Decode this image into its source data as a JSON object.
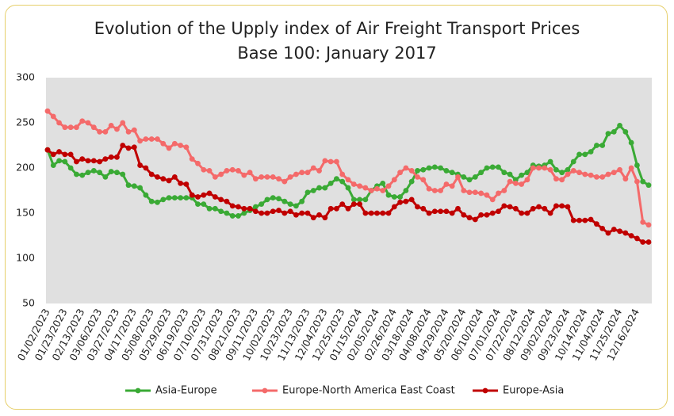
{
  "chart_data": {
    "type": "line",
    "title": "Evolution of the Upply index of Air Freight Transport Prices",
    "subtitle": "Base 100: January 2017",
    "categories": [
      "01/02/2023",
      null,
      null,
      "01/23/2023",
      null,
      null,
      "02/13/2023",
      null,
      null,
      "03/06/2023",
      null,
      null,
      "03/27/2023",
      null,
      null,
      "04/17/2023",
      null,
      null,
      "05/08/2023",
      null,
      null,
      "05/29/2023",
      null,
      null,
      "06/19/2023",
      null,
      null,
      "07/10/2023",
      null,
      null,
      "07/31/2023",
      null,
      null,
      "08/21/2023",
      null,
      null,
      "09/11/2023",
      null,
      null,
      "10/02/2023",
      null,
      null,
      "10/23/2023",
      null,
      null,
      "11/13/2023",
      null,
      null,
      "12/04/2023",
      null,
      null,
      "12/25/2023",
      null,
      null,
      "01/15/2024",
      null,
      null,
      "02/05/2024",
      null,
      null,
      "02/26/2024",
      null,
      null,
      "03/18/2024",
      null,
      null,
      "04/08/2024",
      null,
      null,
      "04/29/2024",
      null,
      null,
      "05/20/2024",
      null,
      null,
      "06/10/2024",
      null,
      null,
      "07/01/2024",
      null,
      null,
      "07/22/2024",
      null,
      null,
      "08/12/2024",
      null,
      null,
      "09/02/2024",
      null,
      null,
      "09/23/2024",
      null,
      null,
      "10/14/2024",
      null,
      null,
      "11/04/2024",
      null,
      null,
      "11/25/2024",
      null,
      null,
      "12/16/2024",
      null,
      null
    ],
    "series": [
      {
        "name": "Asia-Europe",
        "color": "#3aaa35",
        "values": [
          220,
          203,
          208,
          207,
          200,
          193,
          192,
          195,
          197,
          195,
          190,
          196,
          195,
          193,
          181,
          180,
          178,
          170,
          163,
          162,
          165,
          167,
          167,
          167,
          167,
          167,
          160,
          160,
          155,
          155,
          152,
          150,
          147,
          147,
          150,
          153,
          157,
          160,
          165,
          167,
          166,
          163,
          160,
          158,
          163,
          173,
          175,
          178,
          178,
          183,
          188,
          185,
          178,
          165,
          165,
          165,
          175,
          180,
          183,
          170,
          168,
          168,
          175,
          185,
          197,
          198,
          200,
          201,
          200,
          197,
          195,
          193,
          190,
          187,
          190,
          195,
          200,
          201,
          201,
          195,
          193,
          187,
          192,
          195,
          203,
          202,
          203,
          207,
          198,
          195,
          198,
          207,
          215,
          215,
          218,
          225,
          225,
          238,
          240,
          247,
          240,
          228,
          203,
          185,
          181
        ]
      },
      {
        "name": "Europe-North America East Coast",
        "color": "#f46a6a",
        "values": [
          263,
          257,
          250,
          245,
          245,
          245,
          252,
          250,
          245,
          240,
          240,
          247,
          243,
          250,
          240,
          242,
          230,
          232,
          232,
          232,
          227,
          222,
          227,
          225,
          223,
          210,
          205,
          198,
          197,
          190,
          193,
          197,
          198,
          197,
          192,
          195,
          188,
          190,
          190,
          190,
          188,
          185,
          190,
          193,
          195,
          195,
          200,
          197,
          208,
          207,
          207,
          193,
          187,
          182,
          180,
          178,
          175,
          177,
          175,
          180,
          187,
          195,
          200,
          197,
          190,
          187,
          177,
          175,
          175,
          182,
          180,
          190,
          175,
          173,
          173,
          172,
          170,
          165,
          172,
          175,
          185,
          183,
          182,
          187,
          200,
          200,
          200,
          198,
          188,
          187,
          193,
          197,
          195,
          193,
          192,
          190,
          190,
          193,
          195,
          198,
          188,
          200,
          185,
          140,
          137
        ]
      },
      {
        "name": "Europe-Asia",
        "color": "#c00000",
        "values": [
          220,
          215,
          218,
          215,
          215,
          207,
          210,
          208,
          208,
          207,
          210,
          212,
          212,
          225,
          222,
          223,
          203,
          200,
          193,
          190,
          188,
          186,
          190,
          183,
          182,
          170,
          168,
          170,
          172,
          168,
          165,
          163,
          158,
          157,
          155,
          155,
          152,
          150,
          150,
          152,
          153,
          150,
          152,
          148,
          150,
          150,
          145,
          148,
          145,
          155,
          155,
          160,
          155,
          160,
          160,
          150,
          150,
          150,
          150,
          150,
          157,
          162,
          163,
          165,
          157,
          155,
          150,
          152,
          152,
          152,
          150,
          155,
          148,
          145,
          143,
          148,
          148,
          150,
          152,
          158,
          157,
          155,
          150,
          150,
          155,
          157,
          155,
          150,
          158,
          158,
          157,
          142,
          142,
          142,
          143,
          138,
          133,
          128,
          132,
          130,
          128,
          125,
          122,
          118,
          118
        ]
      }
    ],
    "ylim": [
      50,
      300
    ],
    "yticks": [
      50,
      100,
      150,
      200,
      250,
      300
    ],
    "grid": false,
    "legend": "bottom"
  }
}
